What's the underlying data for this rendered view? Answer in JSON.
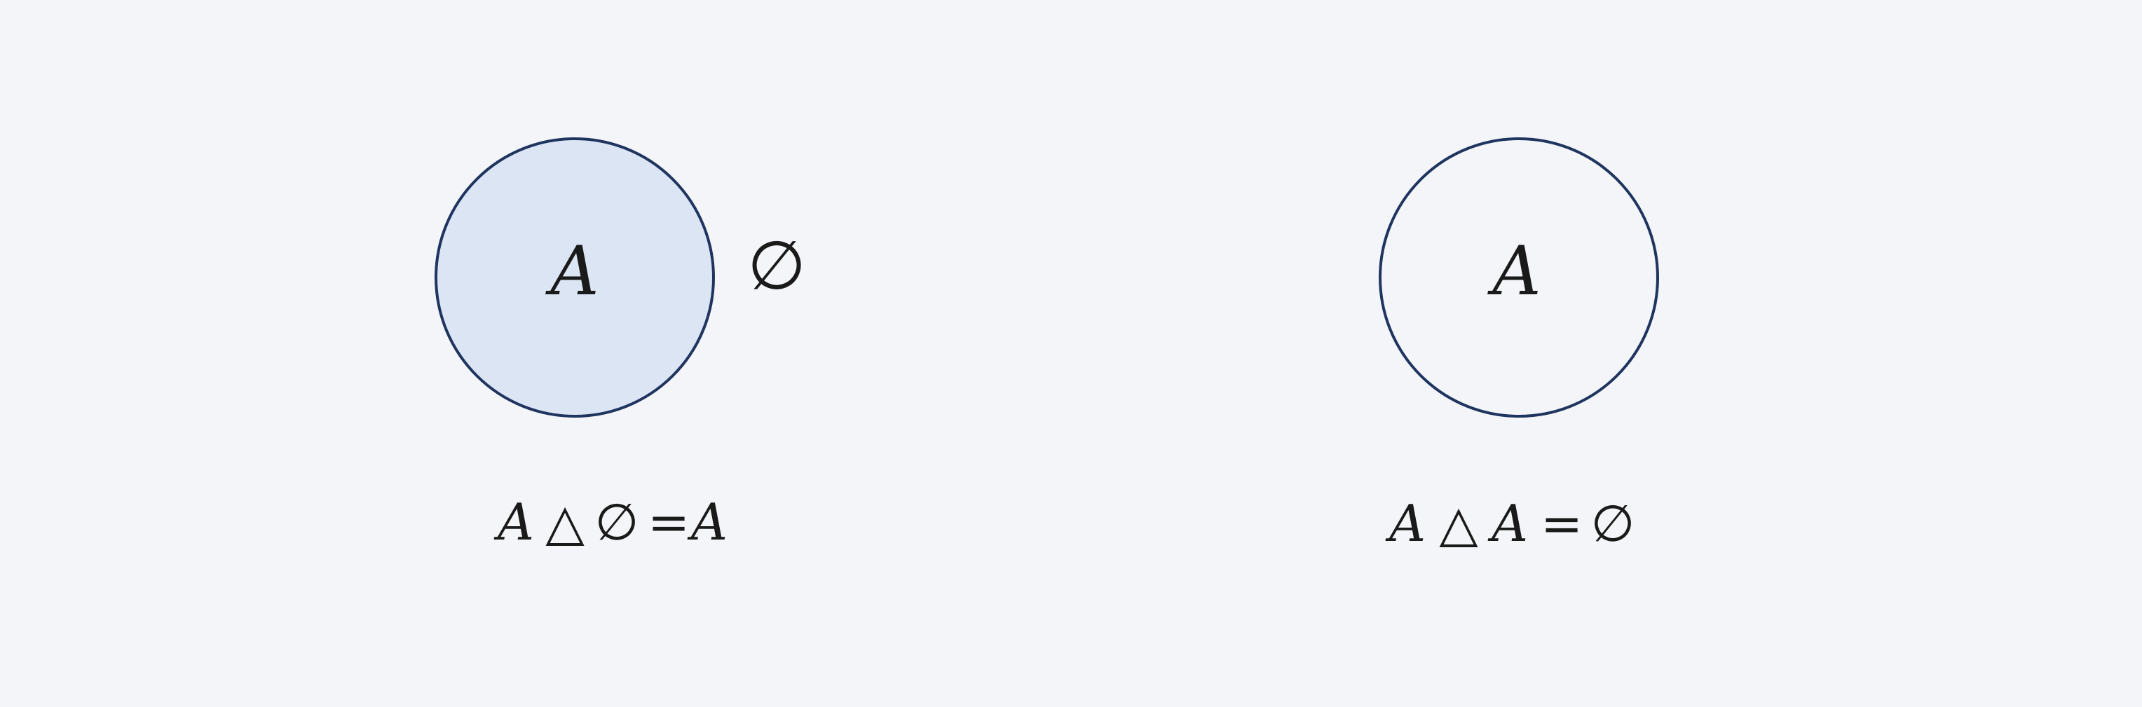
{
  "colors": {
    "background": "#f4f5f8",
    "circle_stroke": "#1f3560",
    "shaded_fill": "#dce5f4",
    "text": "#1a1a1a"
  },
  "left_panel": {
    "set_label": "A",
    "empty_set_label": "∅",
    "shaded": true,
    "equation": {
      "lhs": "A",
      "operator": "△",
      "rhs_operand": "∅",
      "equals": "=",
      "result": "A"
    }
  },
  "right_panel": {
    "set_label": "A",
    "shaded": false,
    "equation": {
      "lhs": "A",
      "operator": "△",
      "rhs_operand": "A",
      "equals": "=",
      "result": "∅"
    }
  }
}
